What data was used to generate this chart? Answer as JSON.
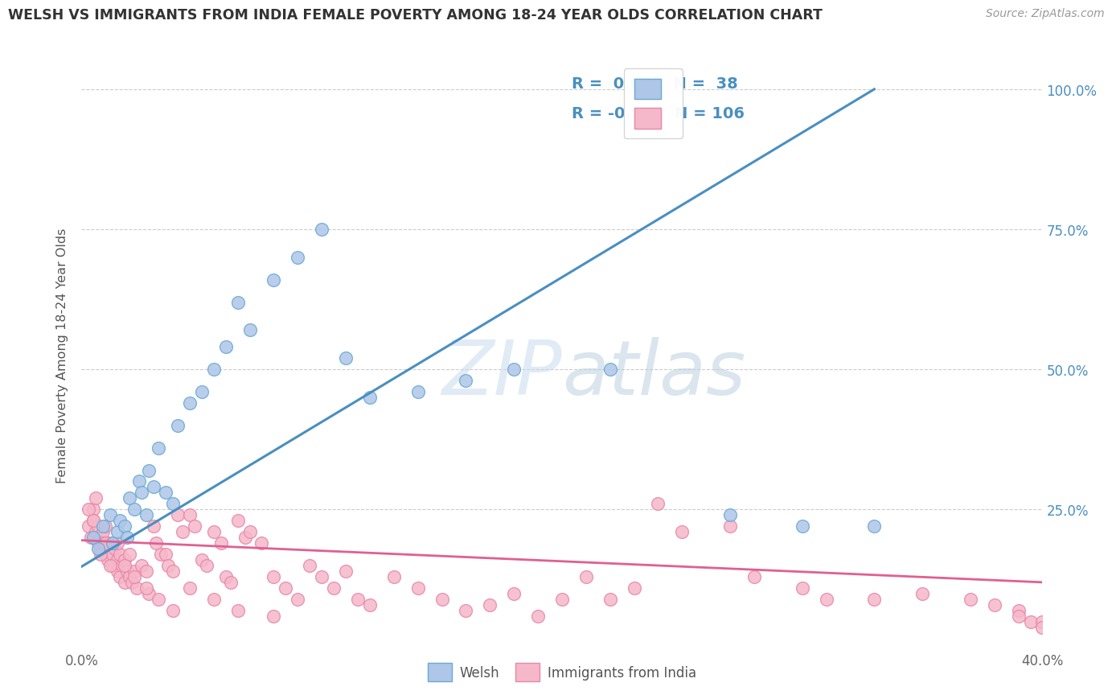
{
  "title": "WELSH VS IMMIGRANTS FROM INDIA FEMALE POVERTY AMONG 18-24 YEAR OLDS CORRELATION CHART",
  "source": "Source: ZipAtlas.com",
  "ylabel": "Female Poverty Among 18-24 Year Olds",
  "welsh_R": "0.697",
  "welsh_N": "38",
  "india_R": "-0.266",
  "india_N": "106",
  "welsh_color": "#aec6e8",
  "welsh_edge_color": "#6aaad4",
  "welsh_line_color": "#4a8fc0",
  "india_color": "#f5b8ca",
  "india_edge_color": "#e888a8",
  "india_line_color": "#e06090",
  "watermark_color": "#d0dff0",
  "background_color": "#ffffff",
  "grid_color": "#cccccc",
  "legend_text_color": "#4a8fc0",
  "legend_welsh": "Welsh",
  "legend_india": "Immigrants from India",
  "xlim": [
    0.0,
    0.4
  ],
  "ylim": [
    0.0,
    1.05
  ],
  "welsh_scatter_x": [
    0.005,
    0.007,
    0.009,
    0.012,
    0.013,
    0.015,
    0.016,
    0.018,
    0.019,
    0.02,
    0.022,
    0.024,
    0.025,
    0.027,
    0.028,
    0.03,
    0.032,
    0.035,
    0.038,
    0.04,
    0.045,
    0.05,
    0.055,
    0.06,
    0.065,
    0.07,
    0.08,
    0.09,
    0.1,
    0.11,
    0.12,
    0.14,
    0.16,
    0.18,
    0.22,
    0.27,
    0.3,
    0.33
  ],
  "welsh_scatter_y": [
    0.2,
    0.18,
    0.22,
    0.24,
    0.19,
    0.21,
    0.23,
    0.22,
    0.2,
    0.27,
    0.25,
    0.3,
    0.28,
    0.24,
    0.32,
    0.29,
    0.36,
    0.28,
    0.26,
    0.4,
    0.44,
    0.46,
    0.5,
    0.54,
    0.62,
    0.57,
    0.66,
    0.7,
    0.75,
    0.52,
    0.45,
    0.46,
    0.48,
    0.5,
    0.5,
    0.24,
    0.22,
    0.22
  ],
  "india_scatter_x": [
    0.003,
    0.004,
    0.005,
    0.005,
    0.006,
    0.007,
    0.007,
    0.008,
    0.008,
    0.009,
    0.009,
    0.01,
    0.01,
    0.011,
    0.011,
    0.012,
    0.013,
    0.013,
    0.014,
    0.015,
    0.015,
    0.016,
    0.016,
    0.017,
    0.018,
    0.018,
    0.019,
    0.02,
    0.02,
    0.021,
    0.022,
    0.023,
    0.025,
    0.027,
    0.028,
    0.03,
    0.031,
    0.033,
    0.035,
    0.036,
    0.038,
    0.04,
    0.042,
    0.045,
    0.047,
    0.05,
    0.052,
    0.055,
    0.058,
    0.06,
    0.062,
    0.065,
    0.068,
    0.07,
    0.075,
    0.08,
    0.085,
    0.09,
    0.095,
    0.1,
    0.105,
    0.11,
    0.115,
    0.12,
    0.13,
    0.14,
    0.15,
    0.16,
    0.17,
    0.18,
    0.19,
    0.2,
    0.21,
    0.22,
    0.23,
    0.24,
    0.25,
    0.27,
    0.28,
    0.3,
    0.31,
    0.33,
    0.35,
    0.37,
    0.38,
    0.39,
    0.39,
    0.395,
    0.4,
    0.4,
    0.003,
    0.005,
    0.006,
    0.008,
    0.01,
    0.012,
    0.015,
    0.018,
    0.022,
    0.027,
    0.032,
    0.038,
    0.045,
    0.055,
    0.065,
    0.08
  ],
  "india_scatter_y": [
    0.22,
    0.2,
    0.25,
    0.23,
    0.21,
    0.22,
    0.19,
    0.2,
    0.18,
    0.21,
    0.19,
    0.22,
    0.17,
    0.18,
    0.16,
    0.19,
    0.17,
    0.15,
    0.18,
    0.16,
    0.14,
    0.17,
    0.13,
    0.15,
    0.16,
    0.12,
    0.14,
    0.17,
    0.13,
    0.12,
    0.14,
    0.11,
    0.15,
    0.14,
    0.1,
    0.22,
    0.19,
    0.17,
    0.17,
    0.15,
    0.14,
    0.24,
    0.21,
    0.24,
    0.22,
    0.16,
    0.15,
    0.21,
    0.19,
    0.13,
    0.12,
    0.23,
    0.2,
    0.21,
    0.19,
    0.13,
    0.11,
    0.09,
    0.15,
    0.13,
    0.11,
    0.14,
    0.09,
    0.08,
    0.13,
    0.11,
    0.09,
    0.07,
    0.08,
    0.1,
    0.06,
    0.09,
    0.13,
    0.09,
    0.11,
    0.26,
    0.21,
    0.22,
    0.13,
    0.11,
    0.09,
    0.09,
    0.1,
    0.09,
    0.08,
    0.07,
    0.06,
    0.05,
    0.05,
    0.04,
    0.25,
    0.23,
    0.27,
    0.17,
    0.19,
    0.15,
    0.19,
    0.15,
    0.13,
    0.11,
    0.09,
    0.07,
    0.11,
    0.09,
    0.07,
    0.06
  ],
  "right_ytick_labels": [
    "25.0%",
    "50.0%",
    "75.0%",
    "100.0%"
  ],
  "right_ytick_values": [
    0.25,
    0.5,
    0.75,
    1.0
  ],
  "welsh_trendline": [
    0.0,
    0.148,
    0.33,
    1.0
  ],
  "india_trendline_y0": 0.195,
  "india_trendline_y1": 0.12
}
